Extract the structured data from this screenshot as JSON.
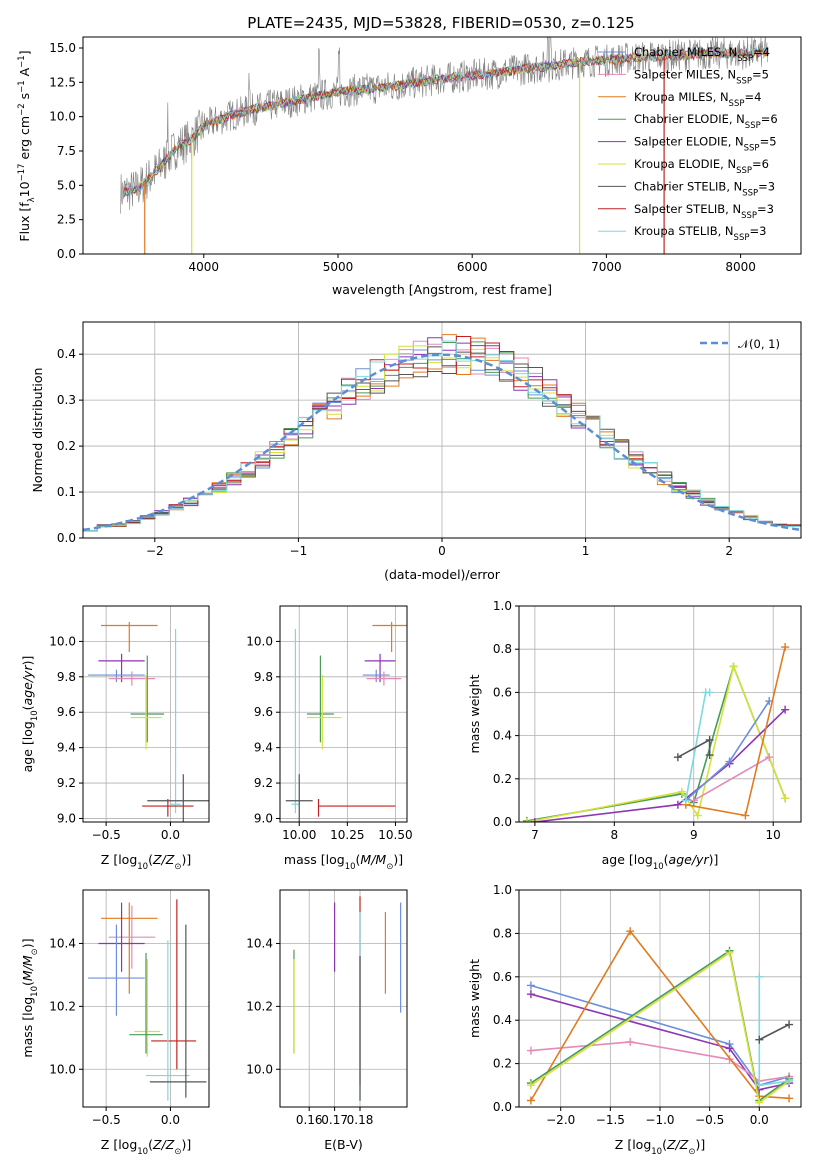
{
  "title": "PLATE=2435, MJD=53828, FIBERID=0530, z=0.125",
  "colors": {
    "Chabrier MILES": "#6b8fdc",
    "Salpeter MILES": "#e58ab8",
    "Kroupa MILES": "#e07b20",
    "Chabrier ELODIE": "#4a9a5a",
    "Salpeter ELODIE": "#8e35b5",
    "Kroupa ELODIE": "#d4e23a",
    "Chabrier STELIB": "#555555",
    "Salpeter STELIB": "#c22222",
    "Kroupa STELIB": "#7ed8e0",
    "data": "#808080",
    "gauss": "#5b8ed6"
  },
  "chart_data": [
    {
      "id": "spectrum",
      "type": "line",
      "xlabel": "wavelength [Angstrom, rest frame]",
      "ylabel": "Flux [f",
      "xlim": [
        3100,
        8450
      ],
      "ylim": [
        0,
        15.8
      ],
      "xticks": [
        4000,
        5000,
        6000,
        7000,
        8000
      ],
      "yticks": [
        0.0,
        2.5,
        5.0,
        7.5,
        10.0,
        12.5,
        15.0
      ],
      "legend": {
        "position": "top-right",
        "entries": [
          {
            "model": "Chabrier MILES",
            "n": "4"
          },
          {
            "model": "Salpeter MILES",
            "n": "5"
          },
          {
            "model": "Kroupa MILES",
            "n": "4"
          },
          {
            "model": "Chabrier ELODIE",
            "n": "6"
          },
          {
            "model": "Salpeter ELODIE",
            "n": "5"
          },
          {
            "model": "Kroupa ELODIE",
            "n": "6"
          },
          {
            "model": "Chabrier STELIB",
            "n": "3"
          },
          {
            "model": "Salpeter STELIB",
            "n": "3"
          },
          {
            "model": "Kroupa STELIB",
            "n": "3"
          }
        ]
      },
      "series_continuum": {
        "x": [
          3400,
          3500,
          3600,
          3700,
          3800,
          3900,
          4000,
          4200,
          4400,
          4600,
          4800,
          5000,
          5200,
          5400,
          5600,
          5800,
          6000,
          6200,
          6400,
          6600,
          6800,
          7000,
          7200,
          7400,
          7600,
          7800,
          8000,
          8200
        ],
        "y": [
          4.5,
          4.7,
          5.6,
          6.6,
          7.8,
          8.3,
          9.3,
          10.1,
          10.6,
          11.0,
          11.4,
          11.8,
          12.0,
          12.2,
          12.5,
          12.8,
          13.0,
          13.2,
          13.5,
          13.7,
          14.0,
          14.1,
          14.3,
          14.4,
          14.5,
          14.6,
          14.6,
          14.7
        ]
      },
      "gaps": [
        {
          "model": "Kroupa MILES",
          "x": 3560
        },
        {
          "model": "Kroupa ELODIE",
          "x": 3910
        },
        {
          "model": "Kroupa ELODIE",
          "x": 6800
        },
        {
          "model": "Salpeter STELIB",
          "x": 7430
        }
      ]
    },
    {
      "id": "residuals",
      "type": "histogram",
      "xlabel": "(data-model)/error",
      "ylabel": "Normed distribution",
      "xlim": [
        -2.5,
        2.5
      ],
      "ylim": [
        0,
        0.47
      ],
      "xticks": [
        -2,
        -1,
        0,
        1,
        2
      ],
      "yticks": [
        0.0,
        0.1,
        0.2,
        0.3,
        0.4
      ],
      "grid": true,
      "legend": {
        "position": "top-right",
        "label": "𝒩(0, 1)"
      },
      "bins": [
        -2.5,
        -2.4,
        -2.3,
        -2.2,
        -2.1,
        -2.0,
        -1.9,
        -1.8,
        -1.7,
        -1.6,
        -1.5,
        -1.4,
        -1.3,
        -1.2,
        -1.1,
        -1.0,
        -0.9,
        -0.8,
        -0.7,
        -0.6,
        -0.5,
        -0.4,
        -0.3,
        -0.2,
        -0.1,
        0.0,
        0.1,
        0.2,
        0.3,
        0.4,
        0.5,
        0.6,
        0.7,
        0.8,
        0.9,
        1.0,
        1.1,
        1.2,
        1.3,
        1.4,
        1.5,
        1.6,
        1.7,
        1.8,
        1.9,
        2.0,
        2.1,
        2.2,
        2.3,
        2.4,
        2.5
      ],
      "hist_values": [
        0.018,
        0.027,
        0.028,
        0.035,
        0.045,
        0.054,
        0.066,
        0.079,
        0.094,
        0.11,
        0.13,
        0.149,
        0.171,
        0.193,
        0.217,
        0.242,
        0.266,
        0.29,
        0.314,
        0.335,
        0.354,
        0.37,
        0.383,
        0.392,
        0.398,
        0.399,
        0.398,
        0.392,
        0.383,
        0.37,
        0.354,
        0.335,
        0.314,
        0.29,
        0.266,
        0.242,
        0.217,
        0.193,
        0.171,
        0.149,
        0.13,
        0.11,
        0.094,
        0.079,
        0.066,
        0.054,
        0.045,
        0.035,
        0.028,
        0.027
      ]
    },
    {
      "id": "age-vs-Z",
      "type": "errorbar",
      "xlabel": "Z [log",
      "ylabel": "age  [log",
      "xlim": [
        -0.68,
        0.3
      ],
      "ylim": [
        8.98,
        10.2
      ],
      "xticks": [
        -0.5,
        0.0
      ],
      "yticks": [
        9.0,
        9.2,
        9.4,
        9.6,
        9.8,
        10.0
      ],
      "grid": true,
      "points": [
        {
          "model": "Kroupa MILES",
          "x": -0.32,
          "xerr": [
            0.22,
            0.22
          ],
          "y": 10.09,
          "yerr": [
            0.15,
            0.02
          ]
        },
        {
          "model": "Salpeter ELODIE",
          "x": -0.38,
          "xerr": [
            0.18,
            0.18
          ],
          "y": 9.89,
          "yerr": [
            0.12,
            0.04
          ]
        },
        {
          "model": "Chabrier MILES",
          "x": -0.42,
          "xerr": [
            0.22,
            0.22
          ],
          "y": 9.81,
          "yerr": [
            0.04,
            0.03
          ]
        },
        {
          "model": "Salpeter MILES",
          "x": -0.3,
          "xerr": [
            0.18,
            0.18
          ],
          "y": 9.79,
          "yerr": [
            0.04,
            0.04
          ]
        },
        {
          "model": "Chabrier ELODIE",
          "x": -0.18,
          "xerr": [
            0.13,
            0.13
          ],
          "y": 9.59,
          "yerr": [
            0.16,
            0.33
          ]
        },
        {
          "model": "Kroupa ELODIE",
          "x": -0.19,
          "xerr": [
            0.12,
            0.12
          ],
          "y": 9.57,
          "yerr": [
            0.18,
            0.24
          ]
        },
        {
          "model": "Kroupa STELIB",
          "x": 0.04,
          "xerr": [
            0.04,
            0.04
          ],
          "y": 9.08,
          "yerr": [
            0.05,
            0.99
          ]
        },
        {
          "model": "Chabrier STELIB",
          "x": 0.1,
          "xerr": [
            0.28,
            0.2
          ],
          "y": 9.1,
          "yerr": [
            0.2,
            0.15
          ]
        },
        {
          "model": "Salpeter STELIB",
          "x": -0.02,
          "xerr": [
            0.2,
            0.2
          ],
          "y": 9.07,
          "yerr": [
            0.06,
            0.04
          ]
        }
      ]
    },
    {
      "id": "age-vs-mass",
      "type": "errorbar",
      "xlabel": "mass [log",
      "ylabel": "",
      "xlim": [
        9.9,
        10.56
      ],
      "ylim": [
        8.98,
        10.2
      ],
      "xticks": [
        10.0,
        10.25,
        10.5
      ],
      "yticks": [
        9.0,
        9.2,
        9.4,
        9.6,
        9.8,
        10.0
      ],
      "grid": true,
      "points": [
        {
          "model": "Kroupa MILES",
          "x": 10.48,
          "xerr": [
            0.1,
            0.1
          ],
          "y": 10.09,
          "yerr": [
            0.15,
            0.02
          ]
        },
        {
          "model": "Salpeter ELODIE",
          "x": 10.42,
          "xerr": [
            0.08,
            0.08
          ],
          "y": 9.89,
          "yerr": [
            0.12,
            0.04
          ]
        },
        {
          "model": "Chabrier MILES",
          "x": 10.4,
          "xerr": [
            0.07,
            0.07
          ],
          "y": 9.81,
          "yerr": [
            0.04,
            0.03
          ]
        },
        {
          "model": "Salpeter MILES",
          "x": 10.44,
          "xerr": [
            0.09,
            0.09
          ],
          "y": 9.79,
          "yerr": [
            0.04,
            0.04
          ]
        },
        {
          "model": "Chabrier ELODIE",
          "x": 10.11,
          "xerr": [
            0.07,
            0.07
          ],
          "y": 9.59,
          "yerr": [
            0.16,
            0.33
          ]
        },
        {
          "model": "Kroupa ELODIE",
          "x": 10.12,
          "xerr": [
            0.08,
            0.1
          ],
          "y": 9.57,
          "yerr": [
            0.18,
            0.24
          ]
        },
        {
          "model": "Kroupa STELIB",
          "x": 9.98,
          "xerr": [
            0.02,
            0.02
          ],
          "y": 9.08,
          "yerr": [
            0.05,
            0.99
          ]
        },
        {
          "model": "Chabrier STELIB",
          "x": 10.0,
          "xerr": [
            0.07,
            0.07
          ],
          "y": 9.1,
          "yerr": [
            0.2,
            0.15
          ]
        },
        {
          "model": "Salpeter STELIB",
          "x": 10.1,
          "xerr": [
            0.0,
            0.4
          ],
          "y": 9.07,
          "yerr": [
            0.06,
            0.04
          ]
        }
      ]
    },
    {
      "id": "weight-vs-age",
      "type": "line",
      "xlabel": "age  [log",
      "ylabel": "mass weight",
      "xlim": [
        6.8,
        10.35
      ],
      "ylim": [
        0,
        1.0
      ],
      "xticks": [
        7,
        8,
        9,
        10
      ],
      "yticks": [
        0.0,
        0.2,
        0.4,
        0.6,
        0.8,
        1.0
      ],
      "grid": true,
      "series": [
        {
          "model": "Chabrier ELODIE",
          "x": [
            6.9,
            8.85,
            9.0,
            9.5,
            10.15
          ],
          "y": [
            0.005,
            0.13,
            0.09,
            0.72,
            0.11
          ]
        },
        {
          "model": "Kroupa ELODIE",
          "x": [
            6.9,
            8.85,
            9.05,
            9.5,
            10.15
          ],
          "y": [
            0.0,
            0.14,
            0.03,
            0.72,
            0.11
          ]
        },
        {
          "model": "Salpeter ELODIE",
          "x": [
            7.0,
            8.8,
            9.45,
            10.15
          ],
          "y": [
            0.0,
            0.08,
            0.27,
            0.52
          ]
        },
        {
          "model": "Chabrier MILES",
          "x": [
            8.9,
            9.45,
            9.95
          ],
          "y": [
            0.1,
            0.28,
            0.56
          ]
        },
        {
          "model": "Salpeter MILES",
          "x": [
            9.0,
            9.95
          ],
          "y": [
            0.1,
            0.3
          ]
        },
        {
          "model": "Kroupa MILES",
          "x": [
            8.9,
            9.65,
            10.15
          ],
          "y": [
            0.08,
            0.03,
            0.81
          ]
        },
        {
          "model": "Kroupa STELIB",
          "x": [
            8.9,
            9.15,
            9.2
          ],
          "y": [
            0.1,
            0.6,
            0.6
          ]
        },
        {
          "model": "Chabrier STELIB",
          "x": [
            8.8,
            9.2,
            9.2
          ],
          "y": [
            0.3,
            0.38,
            0.31
          ]
        }
      ]
    },
    {
      "id": "mass-vs-Z",
      "type": "errorbar",
      "xlabel": "Z [log",
      "ylabel": "mass [log",
      "xlim": [
        -0.68,
        0.3
      ],
      "ylim": [
        9.88,
        10.57
      ],
      "xticks": [
        -0.5,
        0.0
      ],
      "yticks": [
        10.0,
        10.2,
        10.4
      ],
      "grid": true,
      "points": [
        {
          "model": "Kroupa MILES",
          "x": -0.32,
          "xerr": [
            0.22,
            0.22
          ],
          "y": 10.48,
          "yerr": [
            0.24,
            0.05
          ]
        },
        {
          "model": "Salpeter MILES",
          "x": -0.3,
          "xerr": [
            0.18,
            0.18
          ],
          "y": 10.42,
          "yerr": [
            0.1,
            0.1
          ]
        },
        {
          "model": "Salpeter ELODIE",
          "x": -0.38,
          "xerr": [
            0.18,
            0.18
          ],
          "y": 10.4,
          "yerr": [
            0.09,
            0.13
          ]
        },
        {
          "model": "Chabrier MILES",
          "x": -0.42,
          "xerr": [
            0.22,
            0.22
          ],
          "y": 10.29,
          "yerr": [
            0.12,
            0.17
          ]
        },
        {
          "model": "Kroupa ELODIE",
          "x": -0.18,
          "xerr": [
            0.1,
            0.1
          ],
          "y": 10.12,
          "yerr": [
            0.08,
            0.23
          ]
        },
        {
          "model": "Chabrier ELODIE",
          "x": -0.19,
          "xerr": [
            0.13,
            0.13
          ],
          "y": 10.11,
          "yerr": [
            0.06,
            0.26
          ]
        },
        {
          "model": "Salpeter STELIB",
          "x": 0.05,
          "xerr": [
            0.2,
            0.15
          ],
          "y": 10.09,
          "yerr": [
            0.09,
            0.45
          ]
        },
        {
          "model": "Kroupa STELIB",
          "x": -0.02,
          "xerr": [
            0.17,
            0.17
          ],
          "y": 9.98,
          "yerr": [
            0.08,
            0.43
          ]
        },
        {
          "model": "Chabrier STELIB",
          "x": 0.12,
          "xerr": [
            0.28,
            0.16
          ],
          "y": 9.96,
          "yerr": [
            0.05,
            0.5
          ]
        }
      ]
    },
    {
      "id": "mass-vs-EBV",
      "type": "errorbar",
      "xlabel": "E(B-V)",
      "ylabel": "",
      "xlim": [
        0.1485,
        0.1985
      ],
      "ylim": [
        9.88,
        10.57
      ],
      "xticks": [
        0.16,
        0.17,
        0.18
      ],
      "yticks": [
        10.0,
        10.2,
        10.4
      ],
      "grid": true,
      "points": [
        {
          "model": "Chabrier ELODIE",
          "x": 0.154,
          "y": 10.2,
          "yerr": [
            0.15,
            0.18
          ]
        },
        {
          "model": "Kroupa ELODIE",
          "x": 0.154,
          "y": 10.15,
          "yerr": [
            0.1,
            0.2
          ]
        },
        {
          "model": "Salpeter ELODIE",
          "x": 0.17,
          "y": 10.4,
          "yerr": [
            0.09,
            0.13
          ]
        },
        {
          "model": "Salpeter STELIB",
          "x": 0.18,
          "y": 10.2,
          "yerr": [
            0.25,
            0.35
          ]
        },
        {
          "model": "Kroupa STELIB",
          "x": 0.18,
          "y": 10.05,
          "yerr": [
            0.15,
            0.45
          ]
        },
        {
          "model": "Chabrier STELIB",
          "x": 0.18,
          "y": 9.96,
          "yerr": [
            0.06,
            0.4
          ]
        },
        {
          "model": "Kroupa MILES",
          "x": 0.19,
          "y": 10.38,
          "yerr": [
            0.14,
            0.12
          ]
        },
        {
          "model": "Chabrier MILES",
          "x": 0.196,
          "y": 10.35,
          "yerr": [
            0.17,
            0.18
          ]
        }
      ]
    },
    {
      "id": "weight-vs-Z",
      "type": "line",
      "xlabel": "Z [log",
      "ylabel": "mass weight",
      "xlim": [
        -2.42,
        0.42
      ],
      "ylim": [
        0,
        1.0
      ],
      "xticks": [
        -2.0,
        -1.5,
        -1.0,
        -0.5,
        0.0
      ],
      "yticks": [
        0.0,
        0.2,
        0.4,
        0.6,
        0.8,
        1.0
      ],
      "grid": true,
      "series": [
        {
          "model": "Chabrier MILES",
          "x": [
            -2.3,
            -0.3,
            0.0,
            0.3
          ],
          "y": [
            0.56,
            0.29,
            0.1,
            0.14
          ]
        },
        {
          "model": "Salpeter ELODIE",
          "x": [
            -2.3,
            -0.3,
            0.0,
            0.3
          ],
          "y": [
            0.52,
            0.27,
            0.08,
            0.11
          ]
        },
        {
          "model": "Salpeter MILES",
          "x": [
            -2.3,
            -1.3,
            -0.3,
            0.0,
            0.3
          ],
          "y": [
            0.26,
            0.3,
            0.22,
            0.12,
            0.14
          ]
        },
        {
          "model": "Kroupa MILES",
          "x": [
            -2.3,
            -1.3,
            0.0,
            0.3
          ],
          "y": [
            0.03,
            0.81,
            0.05,
            0.04
          ]
        },
        {
          "model": "Chabrier ELODIE",
          "x": [
            -2.3,
            -0.3,
            0.0,
            0.3
          ],
          "y": [
            0.11,
            0.72,
            0.03,
            0.13
          ]
        },
        {
          "model": "Kroupa ELODIE",
          "x": [
            -2.3,
            -0.3,
            0.0,
            0.3
          ],
          "y": [
            0.1,
            0.71,
            0.02,
            0.12
          ]
        },
        {
          "model": "Kroupa STELIB",
          "x": [
            0.0,
            0.0,
            0.3
          ],
          "y": [
            0.6,
            0.1,
            0.12
          ]
        },
        {
          "model": "Chabrier STELIB",
          "x": [
            0.0,
            0.3
          ],
          "y": [
            0.31,
            0.38
          ]
        }
      ]
    }
  ]
}
